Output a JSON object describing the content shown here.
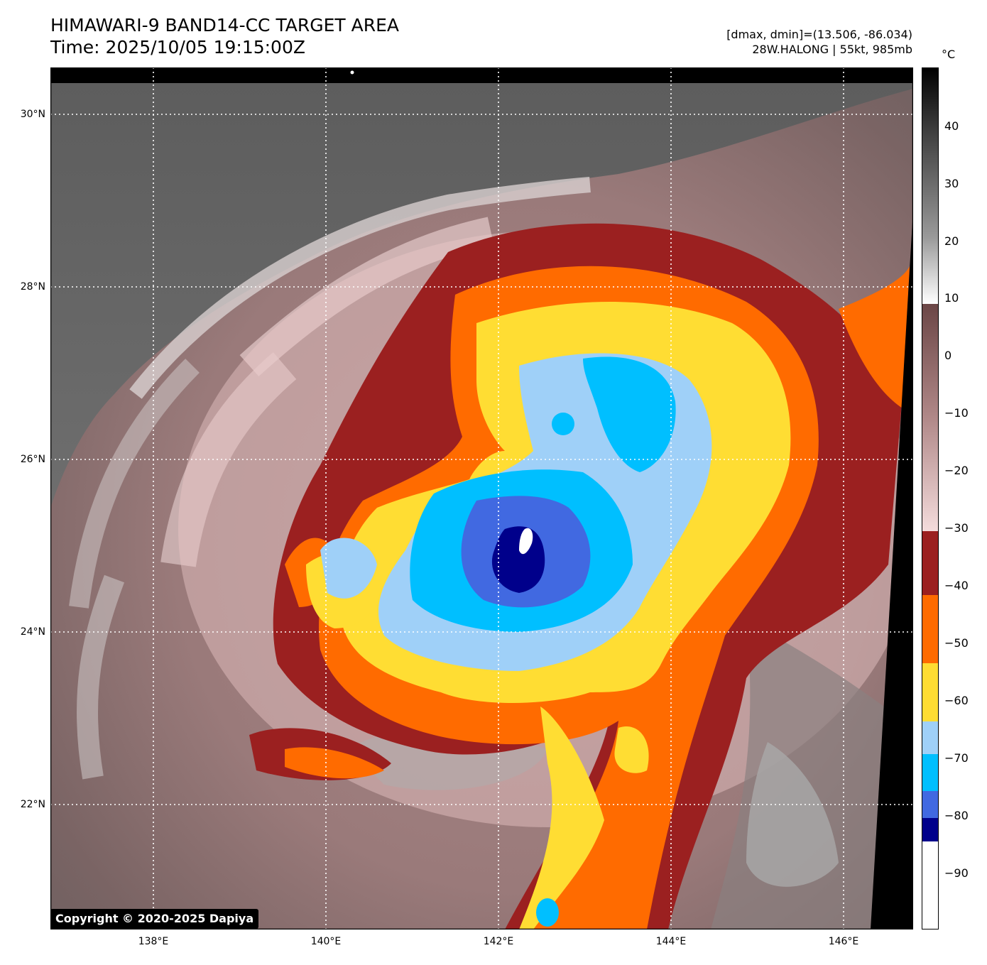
{
  "header": {
    "title": "HIMAWARI-9 BAND14-CC TARGET AREA",
    "time": "Time: 2025/10/05 19:15:00Z",
    "range": "[dmax, dmin]=(13.506, -86.034)",
    "storm": "28W.HALONG | 55kt, 985mb"
  },
  "axes": {
    "lat_labels": [
      "30°N",
      "28°N",
      "26°N",
      "24°N",
      "22°N"
    ],
    "lon_labels": [
      "138°E",
      "140°E",
      "142°E",
      "144°E",
      "146°E"
    ]
  },
  "colorbar": {
    "unit": "°C",
    "ticks": [
      "40",
      "30",
      "20",
      "10",
      "0",
      "−10",
      "−20",
      "−30",
      "−40",
      "−50",
      "−60",
      "−70",
      "−80",
      "−90"
    ],
    "colors": {
      "dark_red": "#9b2020",
      "orange": "#ff6b00",
      "yellow": "#ffdd33",
      "light_blue": "#9fd0f8",
      "cyan_blue": "#00bfff",
      "royal_blue": "#4169e1",
      "navy": "#00008b"
    }
  },
  "footer": {
    "copyright": "Copyright © 2020-2025 Dapiya"
  }
}
